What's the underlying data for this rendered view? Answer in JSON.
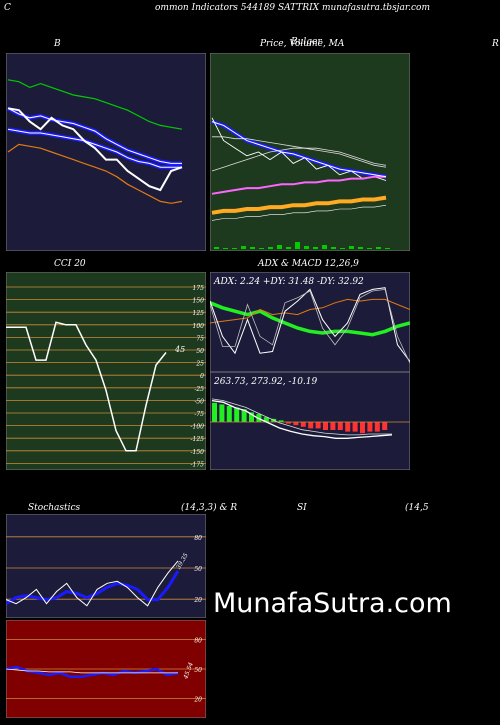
{
  "header": {
    "title": "ommon  Indicators 544189 SATTRIX  munafasutra.tbsjar.com",
    "left_letter": "C"
  },
  "panels": {
    "bollinger": {
      "label": "B"
    },
    "price": {
      "label": "Price,  Volume,  MA",
      "overlay_label": "Bulger"
    },
    "far_right": {
      "label": "R"
    },
    "cci": {
      "label": "CCI 20",
      "value_label": "45"
    },
    "adx_macd": {
      "label": "ADX  & MACD 12,26,9",
      "adx_text": "ADX: 2.24   +DY: 31.48  -DY: 32.92",
      "macd_text": "263.73,  273.92,  -10.19"
    },
    "stoch": {
      "label": "Stochastics",
      "params": "(14,3,3) & R",
      "si_label": "SI",
      "si_params": "(14,5",
      "value_label": "39.35"
    },
    "rsi": {
      "value_label": "45.54"
    },
    "watermark": "MunafaSutra.com"
  },
  "colors": {
    "dark_panel": "#1c1c3a",
    "green_panel": "#1e3a1e",
    "red_panel": "#800000",
    "grid_orange": "#cc8a3a",
    "blue": "#1a1aff",
    "green_line": "#00cc00",
    "bright_green": "#22ee22"
  },
  "chart_data": [
    {
      "type": "line",
      "title": "B",
      "ticks": [],
      "series": [
        {
          "values": [
            88,
            87,
            84,
            86,
            84,
            82,
            80,
            79,
            78,
            76,
            74,
            72,
            69,
            66,
            64,
            63,
            62
          ]
        },
        {
          "values": [
            73,
            70,
            68,
            69,
            67,
            66,
            65,
            63,
            61,
            57,
            54,
            51,
            49,
            47,
            45,
            44,
            44
          ]
        },
        {
          "values": [
            62,
            61,
            60,
            60,
            59,
            58,
            57,
            56,
            54,
            52,
            50,
            47,
            45,
            44,
            42,
            42,
            42
          ]
        },
        {
          "values": [
            50,
            54,
            53,
            52,
            50,
            48,
            46,
            44,
            42,
            40,
            37,
            33,
            30,
            27,
            24,
            23,
            24
          ]
        },
        {
          "values": [
            73,
            72,
            66,
            62,
            68,
            64,
            62,
            56,
            52,
            46,
            46,
            40,
            36,
            32,
            30,
            40,
            42
          ]
        }
      ]
    },
    {
      "type": "line",
      "title": "Price,  Volume,  MA",
      "ticks": [],
      "series": [
        {
          "values": [
            66,
            64,
            60,
            56,
            54,
            52,
            50,
            49,
            47,
            45,
            43,
            41,
            40,
            39,
            38,
            37
          ]
        },
        {
          "values": [
            58,
            58,
            57,
            57,
            56,
            55,
            54,
            53,
            52,
            51,
            50,
            49,
            47,
            45,
            43,
            42
          ]
        },
        {
          "values": [
            40,
            42,
            44,
            46,
            48,
            50,
            51,
            52,
            52,
            52,
            51,
            50,
            48,
            46,
            44,
            43
          ]
        },
        {
          "values": [
            68,
            56,
            52,
            48,
            50,
            46,
            50,
            44,
            47,
            41,
            43,
            38,
            40,
            36,
            37,
            35
          ]
        },
        {
          "values": [
            28,
            29,
            30,
            31,
            31,
            32,
            33,
            33,
            34,
            34,
            35,
            35,
            36,
            36,
            37,
            37
          ]
        },
        {
          "values": [
            18,
            19,
            19,
            20,
            20,
            21,
            21,
            22,
            22,
            23,
            23,
            24,
            24,
            25,
            25,
            26
          ]
        },
        {
          "values": [
            14,
            15,
            15,
            16,
            16,
            17,
            17,
            18,
            18,
            19,
            19,
            20,
            20,
            21,
            21,
            22
          ]
        }
      ],
      "volume": [
        2,
        1,
        1,
        3,
        2,
        1,
        2,
        4,
        2,
        7,
        3,
        2,
        4,
        2,
        1,
        3,
        2,
        1,
        2,
        1
      ]
    },
    {
      "type": "line",
      "title": "CCI 20",
      "ticks": [
        "175",
        "150",
        "125",
        "100",
        "75",
        "50",
        "25",
        "0",
        "-25",
        "-50",
        "-75",
        "-100",
        "-125",
        "-150",
        "-175"
      ],
      "series": [
        {
          "values": [
            95,
            95,
            95,
            30,
            30,
            105,
            100,
            100,
            60,
            30,
            -30,
            -110,
            -150,
            -150,
            -60,
            20,
            45
          ]
        }
      ]
    },
    {
      "type": "line",
      "title": "ADX  & MACD 12,26,9",
      "ticks": [],
      "series": [
        {
          "values": [
            80,
            74,
            70,
            66,
            70,
            62,
            56,
            50,
            46,
            44,
            46,
            46,
            44,
            42,
            46,
            52,
            56
          ]
        },
        {
          "values": [
            56,
            58,
            60,
            62,
            72,
            66,
            68,
            66,
            72,
            74,
            80,
            84,
            82,
            84,
            84,
            78,
            72
          ]
        },
        {
          "values": [
            82,
            40,
            20,
            60,
            20,
            22,
            70,
            82,
            96,
            60,
            40,
            56,
            90,
            96,
            98,
            30,
            10
          ]
        },
        {
          "values": [
            78,
            28,
            28,
            78,
            40,
            30,
            80,
            86,
            94,
            50,
            30,
            50,
            86,
            94,
            96,
            40,
            8
          ]
        }
      ],
      "macd": [
        {
          "values": [
            30,
            28,
            22,
            18,
            10,
            4,
            -2,
            -6,
            -9,
            -11,
            -12,
            -14,
            -14,
            -13,
            -12,
            -11,
            -10
          ]
        },
        {
          "values": [
            32,
            30,
            26,
            22,
            16,
            10,
            4,
            0,
            -4,
            -6,
            -8,
            -9,
            -10,
            -10,
            -9,
            -9,
            -9
          ]
        }
      ],
      "histogram": [
        12,
        11,
        10,
        9,
        8,
        6,
        5,
        3,
        2,
        1,
        -1,
        -2,
        -3,
        -4,
        -4,
        -5,
        -5,
        -5,
        -6,
        -6,
        -7,
        -6,
        -6,
        -5
      ]
    },
    {
      "type": "line",
      "title": "Stochastics",
      "ticks": [
        "80",
        "50",
        "20"
      ],
      "series": [
        {
          "values": [
            18,
            14,
            20,
            28,
            14,
            26,
            34,
            20,
            12,
            28,
            34,
            36,
            30,
            20,
            12,
            30,
            44,
            56
          ]
        },
        {
          "values": [
            14,
            20,
            22,
            20,
            18,
            20,
            26,
            24,
            20,
            24,
            30,
            34,
            32,
            28,
            18,
            18,
            30,
            46
          ]
        }
      ]
    },
    {
      "type": "line",
      "title": "SI",
      "ticks": [
        "80",
        "50",
        "20"
      ],
      "series": [
        {
          "values": [
            50,
            52,
            48,
            46,
            44,
            46,
            42,
            42,
            44,
            46,
            44,
            48,
            46,
            48,
            50,
            44,
            46
          ]
        },
        {
          "values": [
            50,
            49,
            48,
            48,
            47,
            47,
            47,
            46,
            46,
            46,
            46,
            46,
            46,
            46,
            46,
            46,
            46
          ]
        }
      ]
    }
  ]
}
